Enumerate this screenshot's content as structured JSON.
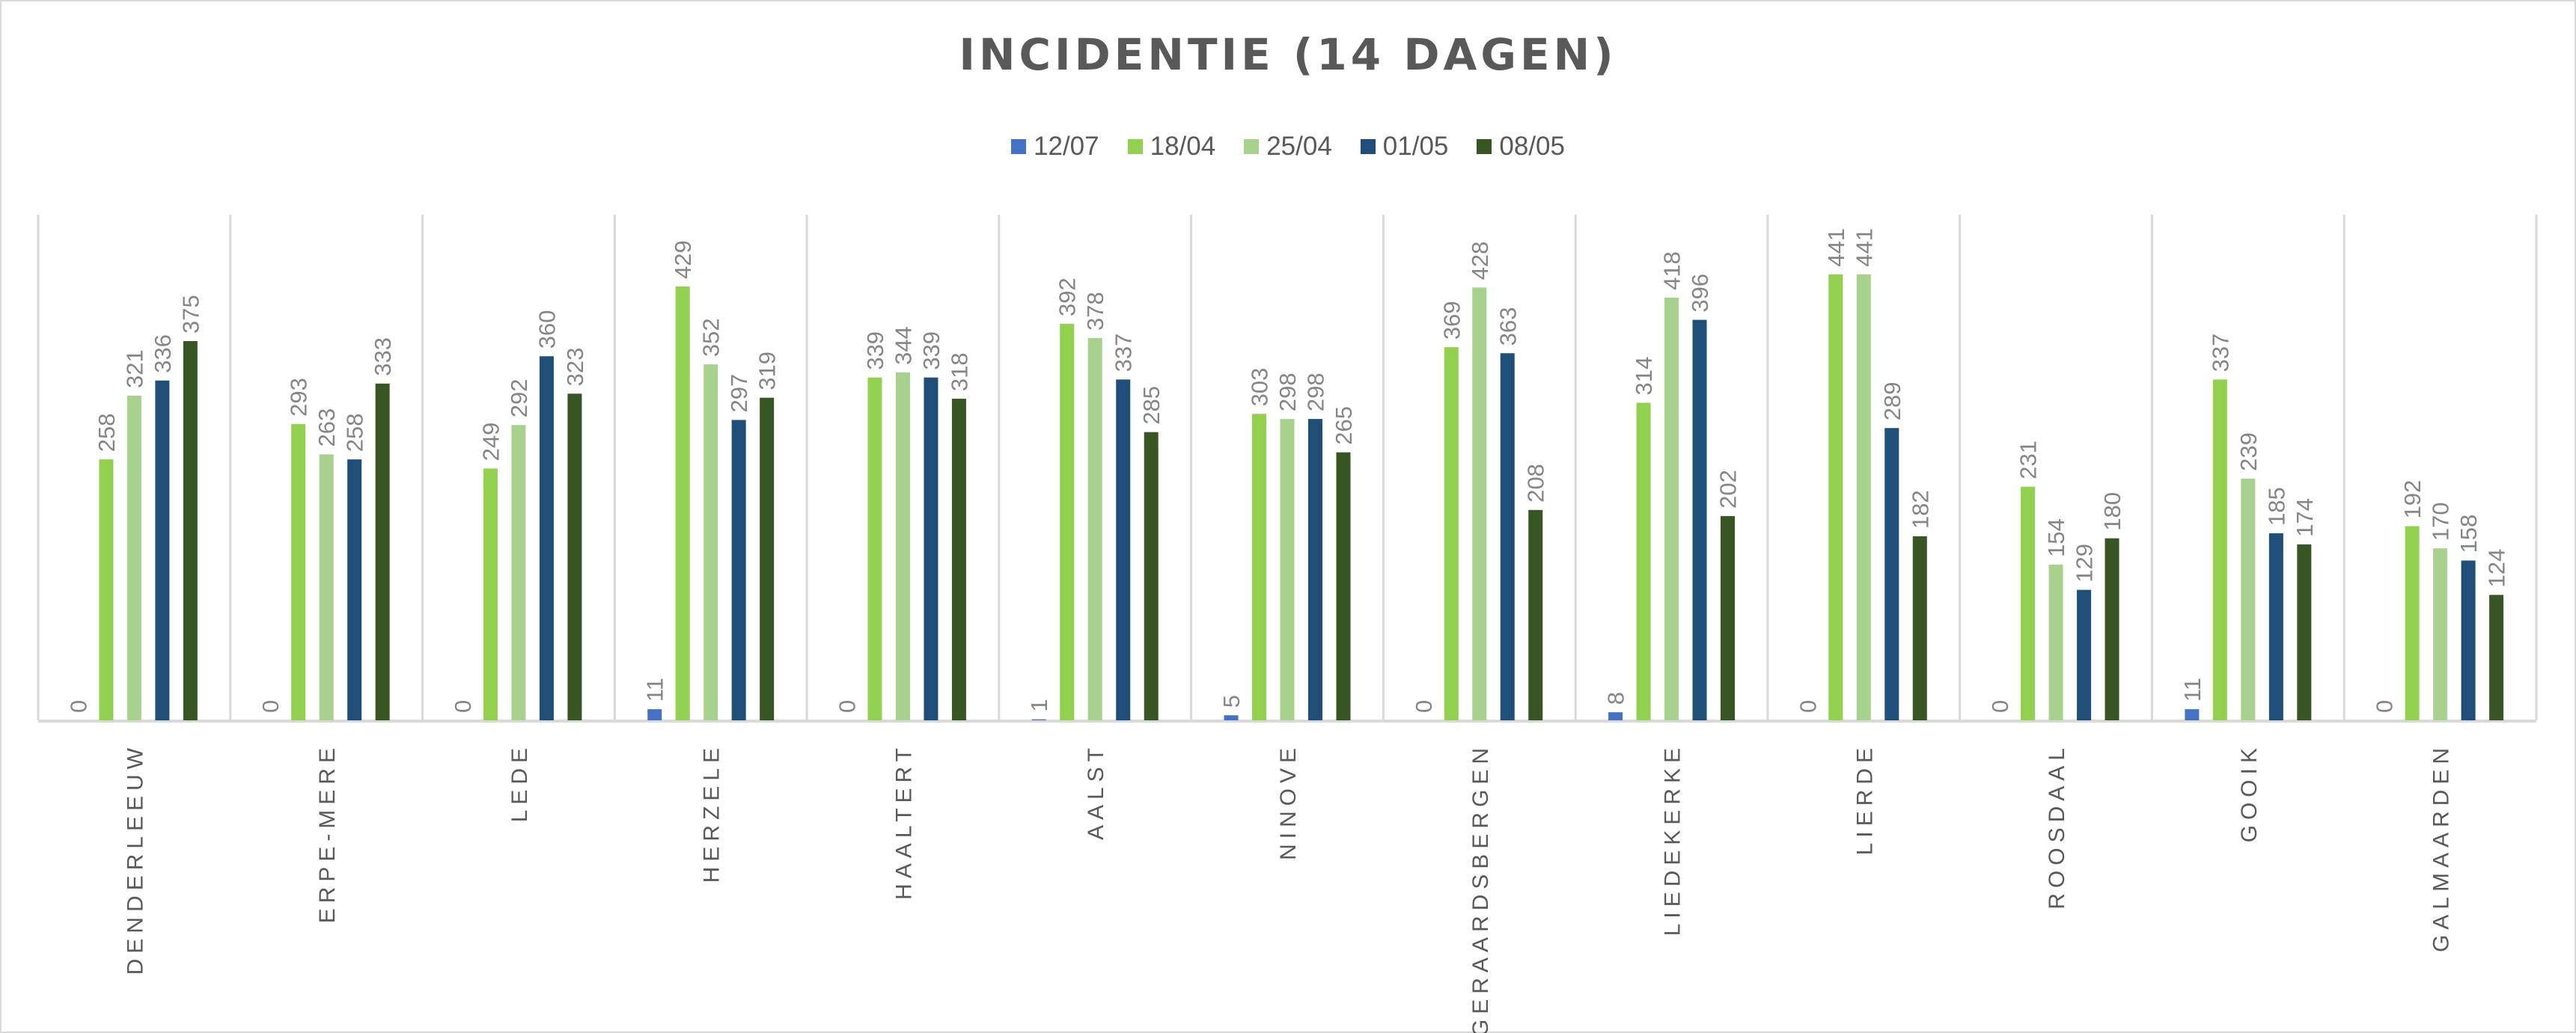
{
  "chart_data": {
    "type": "bar",
    "title": "INCIDENTIE (14 DAGEN)",
    "xlabel": "",
    "ylabel": "",
    "ylim": [
      0,
      500
    ],
    "grid": "vertical category separators",
    "legend_position": "top",
    "categories": [
      "DENDERLEEUW",
      "ERPE-MERE",
      "LEDE",
      "HERZELE",
      "HAALTERT",
      "AALST",
      "NINOVE",
      "GERAARDSBERGEN",
      "LIEDEKERKE",
      "LIERDE",
      "ROOSDAAL",
      "GOOIK",
      "GALMAARDEN"
    ],
    "series": [
      {
        "name": "12/07",
        "color": "#4472c4",
        "values": [
          0,
          0,
          0,
          11,
          0,
          1,
          5,
          0,
          8,
          0,
          0,
          11,
          0
        ],
        "labels": [
          "0",
          "0",
          "0",
          "11",
          "0",
          "1",
          "5",
          "0",
          "8",
          "0",
          "0",
          "11",
          "0"
        ]
      },
      {
        "name": "18/04",
        "color": "#92d050",
        "values": [
          258,
          293,
          249,
          429,
          339,
          392,
          303,
          369,
          314,
          441,
          231,
          337,
          192
        ],
        "labels": [
          "258",
          "293",
          "249",
          "429",
          "339",
          "392",
          "303",
          "369",
          "314",
          "441",
          "231",
          "337",
          "192"
        ]
      },
      {
        "name": "25/04",
        "color": "#a9d18e",
        "values": [
          321,
          263,
          292,
          352,
          344,
          378,
          298,
          428,
          418,
          441,
          154,
          239,
          170
        ],
        "labels": [
          "321",
          "263",
          "292",
          "352",
          "344",
          "378",
          "298",
          "428",
          "418",
          "441",
          "154",
          "239",
          "170"
        ]
      },
      {
        "name": "01/05",
        "color": "#1f4e79",
        "values": [
          336,
          258,
          360,
          297,
          339,
          337,
          298,
          363,
          396,
          289,
          129,
          185,
          158
        ],
        "labels": [
          "336",
          "258",
          "360",
          "297",
          "339",
          "337",
          "298",
          "363",
          "396",
          "289",
          "129",
          "185",
          "158"
        ]
      },
      {
        "name": "08/05",
        "color": "#375623",
        "values": [
          375,
          333,
          323,
          319,
          318,
          285,
          265,
          208,
          202,
          182,
          180,
          174,
          124
        ],
        "labels": [
          "375",
          "333",
          "323",
          "319",
          "318",
          "285",
          "265",
          "208",
          "202",
          "182",
          "180",
          "174",
          "124"
        ]
      }
    ]
  }
}
